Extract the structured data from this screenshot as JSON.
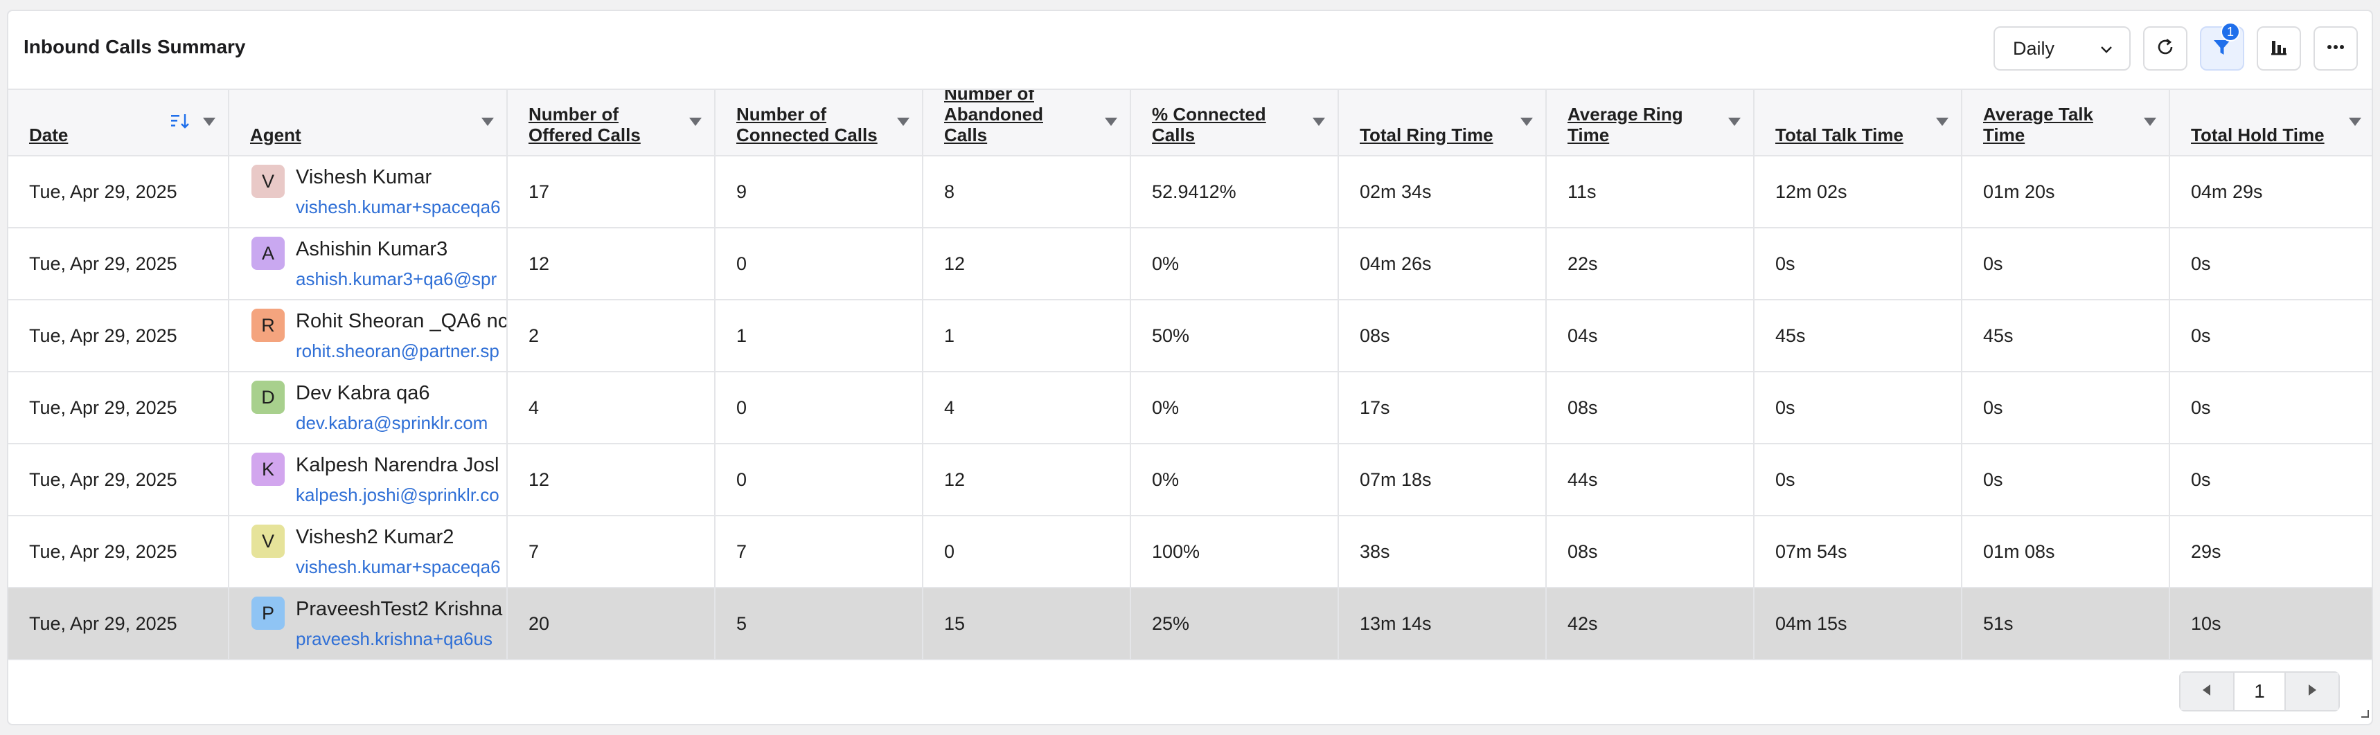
{
  "header": {
    "title": "Inbound Calls Summary",
    "period": "Daily",
    "filter_badge": "1"
  },
  "icons": {
    "refresh": "refresh-icon",
    "filter": "filter-icon",
    "chart": "bar-chart-icon",
    "more": "more-icon"
  },
  "columns": [
    {
      "key": "date",
      "label": "Date"
    },
    {
      "key": "agent",
      "label": "Agent"
    },
    {
      "key": "offered",
      "label": "Number of Offered Calls"
    },
    {
      "key": "connected",
      "label": "Number of Connected Calls"
    },
    {
      "key": "abandoned",
      "label": "Number of Abandoned Calls"
    },
    {
      "key": "pct_connected",
      "label": "% Connected Calls"
    },
    {
      "key": "total_ring",
      "label": "Total Ring Time"
    },
    {
      "key": "avg_ring",
      "label": "Average Ring Time"
    },
    {
      "key": "total_talk",
      "label": "Total Talk Time"
    },
    {
      "key": "avg_talk",
      "label": "Average Talk Time"
    },
    {
      "key": "total_hold",
      "label": "Total Hold Time"
    }
  ],
  "rows": [
    {
      "date": "Tue, Apr 29, 2025",
      "initial": "V",
      "avatar_color": "#e9c9c7",
      "name": "Vishesh Kumar",
      "email": "vishesh.kumar+spaceqa6",
      "offered": "17",
      "connected": "9",
      "abandoned": "8",
      "pct_connected": "52.9412%",
      "total_ring": "02m 34s",
      "avg_ring": "11s",
      "total_talk": "12m 02s",
      "avg_talk": "01m 20s",
      "total_hold": "04m 29s"
    },
    {
      "date": "Tue, Apr 29, 2025",
      "initial": "A",
      "avatar_color": "#c9a8f0",
      "name": "Ashishin Kumar3",
      "email": "ashish.kumar3+qa6@spr",
      "offered": "12",
      "connected": "0",
      "abandoned": "12",
      "pct_connected": "0%",
      "total_ring": "04m 26s",
      "avg_ring": "22s",
      "total_talk": "0s",
      "avg_talk": "0s",
      "total_hold": "0s"
    },
    {
      "date": "Tue, Apr 29, 2025",
      "initial": "R",
      "avatar_color": "#f4a47e",
      "name": "Rohit Sheoran _QA6 nc",
      "email": "rohit.sheoran@partner.sp",
      "offered": "2",
      "connected": "1",
      "abandoned": "1",
      "pct_connected": "50%",
      "total_ring": "08s",
      "avg_ring": "04s",
      "total_talk": "45s",
      "avg_talk": "45s",
      "total_hold": "0s"
    },
    {
      "date": "Tue, Apr 29, 2025",
      "initial": "D",
      "avatar_color": "#a8d08d",
      "name": "Dev Kabra qa6",
      "email": "dev.kabra@sprinklr.com",
      "offered": "4",
      "connected": "0",
      "abandoned": "4",
      "pct_connected": "0%",
      "total_ring": "17s",
      "avg_ring": "08s",
      "total_talk": "0s",
      "avg_talk": "0s",
      "total_hold": "0s"
    },
    {
      "date": "Tue, Apr 29, 2025",
      "initial": "K",
      "avatar_color": "#d2a6ee",
      "name": "Kalpesh Narendra Josl",
      "email": "kalpesh.joshi@sprinklr.co",
      "offered": "12",
      "connected": "0",
      "abandoned": "12",
      "pct_connected": "0%",
      "total_ring": "07m 18s",
      "avg_ring": "44s",
      "total_talk": "0s",
      "avg_talk": "0s",
      "total_hold": "0s"
    },
    {
      "date": "Tue, Apr 29, 2025",
      "initial": "V",
      "avatar_color": "#e6e39a",
      "name": "Vishesh2 Kumar2",
      "email": "vishesh.kumar+spaceqa6",
      "offered": "7",
      "connected": "7",
      "abandoned": "0",
      "pct_connected": "100%",
      "total_ring": "38s",
      "avg_ring": "08s",
      "total_talk": "07m 54s",
      "avg_talk": "01m 08s",
      "total_hold": "29s"
    },
    {
      "date": "Tue, Apr 29, 2025",
      "initial": "P",
      "avatar_color": "#8fc4f4",
      "name": "PraveeshTest2 Krishna",
      "email": "praveesh.krishna+qa6us",
      "offered": "20",
      "connected": "5",
      "abandoned": "15",
      "pct_connected": "25%",
      "total_ring": "13m 14s",
      "avg_ring": "42s",
      "total_talk": "04m 15s",
      "avg_talk": "51s",
      "total_hold": "10s"
    }
  ],
  "pager": {
    "page": "1"
  }
}
